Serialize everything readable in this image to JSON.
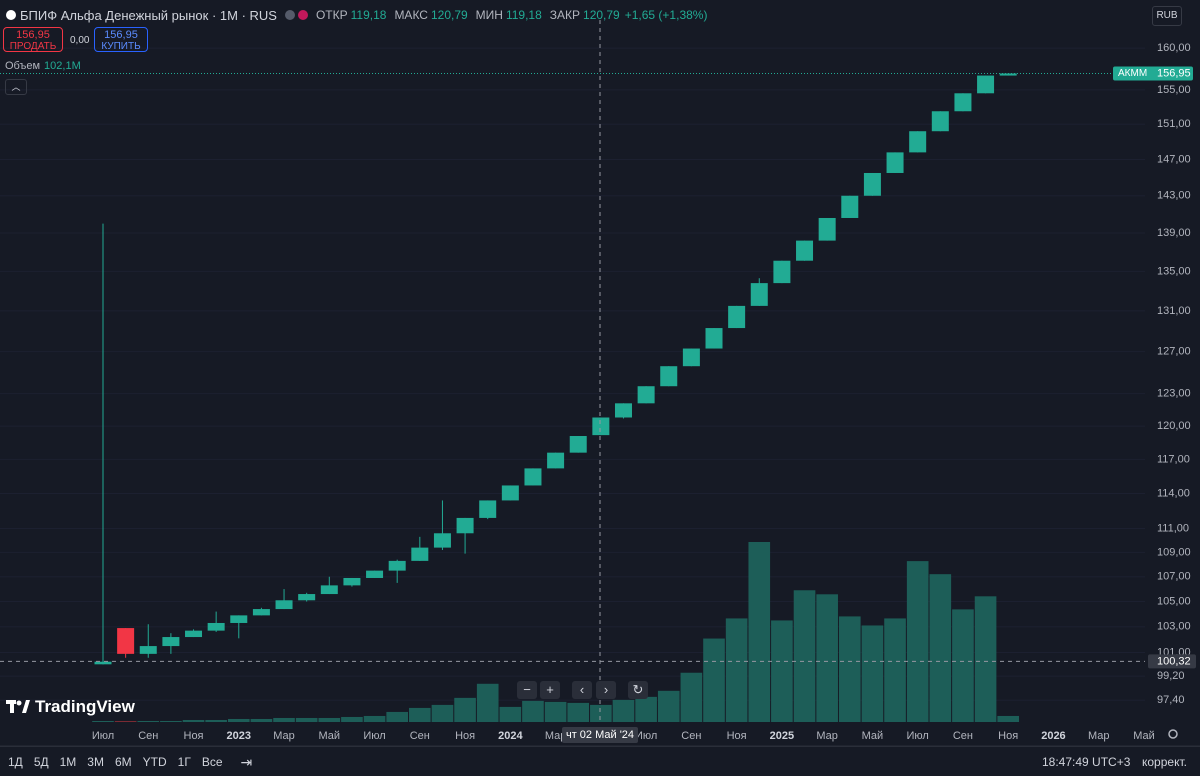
{
  "header": {
    "symbol": "БПИФ Альфа Денежный рынок · 1M · RUS",
    "ohlc": [
      {
        "label": "ОТКР",
        "value": "119,18"
      },
      {
        "label": "МАКС",
        "value": "120,79"
      },
      {
        "label": "МИН",
        "value": "119,18"
      },
      {
        "label": "ЗАКР",
        "value": "120,79"
      }
    ],
    "change": "+1,65 (+1,38%)"
  },
  "trade": {
    "sell_price": "156,95",
    "sell": "ПРОДАТЬ",
    "spread": "0,00",
    "buy_price": "156,95",
    "buy": "КУПИТЬ"
  },
  "currency": "RUB",
  "logo": "TradingView",
  "timeframes": [
    "1Д",
    "5Д",
    "1М",
    "3М",
    "6М",
    "YTD",
    "1Г",
    "Все"
  ],
  "clock": "18:47:49 UTC+3",
  "adjust": "коррект.",
  "chart_data": {
    "type": "candlestick",
    "log": true,
    "ylim": [
      95.8,
      161
    ],
    "yticks": [
      {
        "value": 97.4,
        "label": "97,40"
      },
      {
        "value": 99.2,
        "label": "99,20"
      },
      {
        "value": 101,
        "label": "101,00"
      },
      {
        "value": 103,
        "label": "103,00"
      },
      {
        "value": 105,
        "label": "105,00"
      },
      {
        "value": 107,
        "label": "107,00"
      },
      {
        "value": 109,
        "label": "109,00"
      },
      {
        "value": 111,
        "label": "111,00"
      },
      {
        "value": 114,
        "label": "114,00"
      },
      {
        "value": 117,
        "label": "117,00"
      },
      {
        "value": 120,
        "label": "120,00"
      },
      {
        "value": 123,
        "label": "123,00"
      },
      {
        "value": 127,
        "label": "127,00"
      },
      {
        "value": 131,
        "label": "131,00"
      },
      {
        "value": 135,
        "label": "135,00"
      },
      {
        "value": 139,
        "label": "139,00"
      },
      {
        "value": 143,
        "label": "143,00"
      },
      {
        "value": 147,
        "label": "147,00"
      },
      {
        "value": 151,
        "label": "151,00"
      },
      {
        "value": 155,
        "label": "155,00"
      },
      {
        "value": 160,
        "label": "160,00"
      }
    ],
    "categories": [
      "Июл",
      null,
      "Сен",
      null,
      "Ноя",
      null,
      "2023",
      null,
      "Мар",
      null,
      "Май",
      null,
      "Июл",
      null,
      "Сен",
      null,
      "Ноя",
      null,
      "2024",
      null,
      "Мар",
      null,
      null,
      null,
      "Июл",
      null,
      "Сен",
      null,
      "Ноя",
      null,
      "2025",
      null,
      "Мар",
      null,
      "Май",
      null,
      "Июл",
      null,
      "Сен",
      null,
      "Ноя",
      null,
      "2026",
      null,
      "Мар",
      null,
      "Май"
    ],
    "open": [
      100.1,
      102.9,
      100.9,
      101.5,
      102.2,
      102.7,
      103.3,
      103.9,
      104.4,
      105.1,
      105.6,
      106.3,
      106.9,
      107.5,
      108.3,
      109.4,
      110.6,
      111.9,
      113.4,
      114.7,
      116.2,
      117.6,
      119.18,
      120.79,
      122.1,
      123.7,
      125.6,
      127.3,
      129.3,
      131.5,
      133.8,
      136.1,
      138.2,
      140.6,
      143.0,
      145.5,
      147.8,
      150.2,
      152.5,
      154.6,
      156.7,
      null,
      null,
      null,
      null,
      null,
      null
    ],
    "high": [
      140,
      102.9,
      103.2,
      102.5,
      102.8,
      104.2,
      103.9,
      104.5,
      106.0,
      105.7,
      107.0,
      106.9,
      107.5,
      108.4,
      110.3,
      113.4,
      111.9,
      113.4,
      114.7,
      116.2,
      117.6,
      119.1,
      120.79,
      122.1,
      123.7,
      125.6,
      127.3,
      129.3,
      131.5,
      134.3,
      136.1,
      138.2,
      140.6,
      143.0,
      145.5,
      147.8,
      150.2,
      152.5,
      154.6,
      156.7,
      156.95,
      null,
      null,
      null,
      null,
      null,
      null
    ],
    "low": [
      100.1,
      100.6,
      100.6,
      100.9,
      102.2,
      102.6,
      102.1,
      103.9,
      104.4,
      105.0,
      105.6,
      106.2,
      106.9,
      106.5,
      108.3,
      109.2,
      108.9,
      111.8,
      113.4,
      114.7,
      116.2,
      117.6,
      119.18,
      120.7,
      122.1,
      123.7,
      125.6,
      127.3,
      129.3,
      131.5,
      133.8,
      136.1,
      138.2,
      140.6,
      143.0,
      145.5,
      147.8,
      150.2,
      152.5,
      154.6,
      156.7,
      null,
      null,
      null,
      null,
      null,
      null
    ],
    "close": [
      100.3,
      100.9,
      101.5,
      102.2,
      102.7,
      103.3,
      103.9,
      104.4,
      105.1,
      105.6,
      106.3,
      106.9,
      107.5,
      108.3,
      109.4,
      110.6,
      111.9,
      113.4,
      114.7,
      116.2,
      117.6,
      119.1,
      120.79,
      122.1,
      123.7,
      125.6,
      127.3,
      129.3,
      131.5,
      133.8,
      136.1,
      138.2,
      140.6,
      143.0,
      145.5,
      147.8,
      150.2,
      152.5,
      154.6,
      156.7,
      156.95,
      null,
      null,
      null,
      null,
      null,
      null
    ],
    "up_color": "#22ab94",
    "down_color": "#f23645",
    "volume": {
      "name": "Объем",
      "values": [
        17,
        17,
        17,
        17,
        34,
        34,
        51,
        51,
        68,
        68,
        68,
        85,
        102,
        170,
        238,
        289,
        408,
        646,
        255,
        357,
        340,
        323,
        289,
        374,
        425,
        527,
        833,
        1411,
        1751,
        3043,
        1717,
        2227,
        2159,
        1785,
        1632,
        1751,
        2720,
        2499,
        1904,
        2125,
        102.1,
        null,
        null,
        null,
        null,
        null,
        null
      ],
      "value_labels": [
        null,
        null,
        null,
        null,
        null,
        null,
        null,
        null,
        null,
        null,
        null,
        null,
        null,
        null,
        null,
        null,
        null,
        null,
        null,
        null,
        null,
        null,
        null,
        null,
        null,
        null,
        null,
        null,
        null,
        null,
        null,
        null,
        null,
        null,
        null,
        null,
        null,
        null,
        null,
        null,
        "102,1M",
        null,
        null,
        null,
        null,
        null,
        null
      ],
      "up_color": "#1d5e58",
      "down_color": "#7a2a33"
    },
    "last_price": {
      "name": "АКММ",
      "value": 156.95,
      "label": "156,95"
    },
    "crosshair": {
      "value": 100.32,
      "label": "100,32",
      "x_label": "чт 02 Май '24"
    }
  }
}
